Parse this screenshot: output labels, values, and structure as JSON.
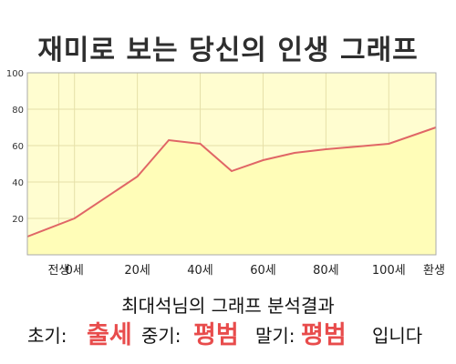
{
  "title": "재미로 보는 당신의 인생 그래프",
  "chart_data": {
    "type": "area",
    "x_ticks": [
      {
        "x": -5,
        "label": "전생"
      },
      {
        "x": 0,
        "label": "0세"
      },
      {
        "x": 20,
        "label": "20세"
      },
      {
        "x": 40,
        "label": "40세"
      },
      {
        "x": 60,
        "label": "60세"
      },
      {
        "x": 80,
        "label": "80세"
      },
      {
        "x": 100,
        "label": "100세"
      },
      {
        "x": 115,
        "label": "환생"
      }
    ],
    "xlim": [
      -15,
      115
    ],
    "ylim": [
      0,
      100
    ],
    "y_ticks": [
      20,
      40,
      60,
      80,
      100
    ],
    "points": [
      {
        "x": -15,
        "y": 10
      },
      {
        "x": 0,
        "y": 20
      },
      {
        "x": 20,
        "y": 43
      },
      {
        "x": 30,
        "y": 63
      },
      {
        "x": 40,
        "y": 61
      },
      {
        "x": 50,
        "y": 46
      },
      {
        "x": 60,
        "y": 52
      },
      {
        "x": 70,
        "y": 56
      },
      {
        "x": 80,
        "y": 58
      },
      {
        "x": 100,
        "y": 61
      },
      {
        "x": 115,
        "y": 70
      }
    ],
    "grid": true,
    "colors": {
      "line": "#e06666",
      "fill": "#fffdd0",
      "grid": "#e6e0a8",
      "axis": "#aaaaaa"
    }
  },
  "result": {
    "subtitle": "최대석님의 그래프 분석결과",
    "early_label": "초기:",
    "early_value": "출세",
    "mid_label": "중기:",
    "mid_value": "평범",
    "late_label": "말기:",
    "late_value": "평범",
    "ending": "입니다"
  }
}
